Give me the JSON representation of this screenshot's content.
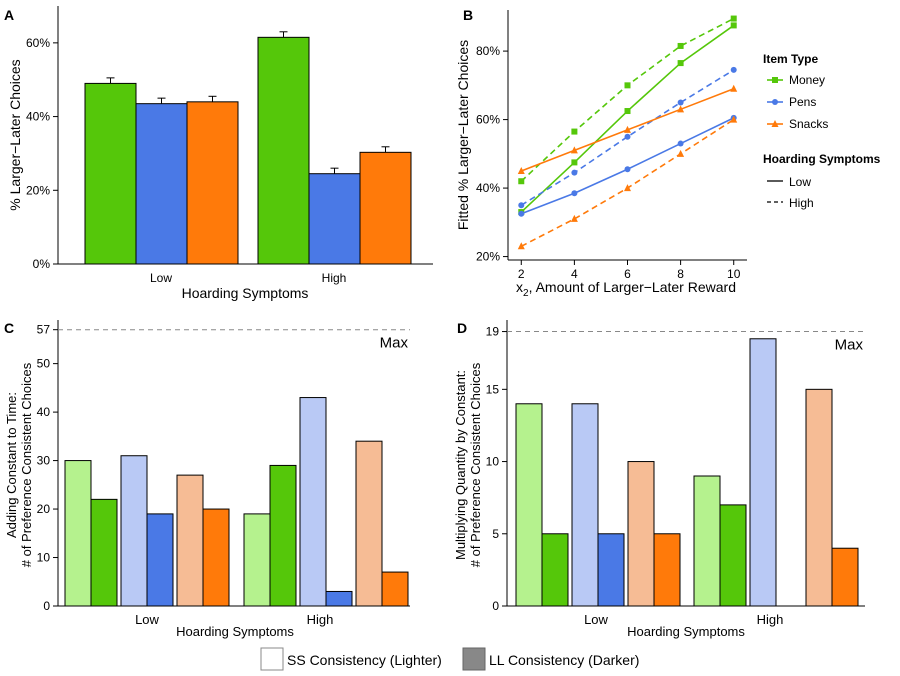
{
  "colors": {
    "money": "#55c70a",
    "money_light": "#b5f28e",
    "pens": "#4a79e6",
    "pens_light": "#b9c9f5",
    "snacks": "#ff7a0a",
    "snacks_light": "#f6bc95",
    "max_line": "#888888",
    "neutral_dark": "#888888"
  },
  "chart_data": [
    {
      "panel": "A",
      "type": "bar",
      "categories": [
        "Low",
        "High"
      ],
      "series": [
        {
          "name": "Money",
          "values": [
            49,
            61.5
          ],
          "errors": [
            1.5,
            1.5
          ]
        },
        {
          "name": "Pens",
          "values": [
            43.5,
            24.5
          ],
          "errors": [
            1.5,
            1.5
          ]
        },
        {
          "name": "Snacks",
          "values": [
            44,
            30.3
          ],
          "errors": [
            1.5,
            1.5
          ]
        }
      ],
      "xlabel": "Hoarding Symptoms",
      "ylabel": "% Larger−Later Choices",
      "ylim": [
        0,
        70
      ],
      "yticks": [
        0,
        20,
        40,
        60
      ],
      "ytick_labels": [
        "0%",
        "20%",
        "40%",
        "60%"
      ]
    },
    {
      "panel": "B",
      "type": "line",
      "x": [
        2,
        4,
        6,
        8,
        10
      ],
      "series": [
        {
          "name": "Money",
          "symptoms": "Low",
          "values": [
            33,
            47.5,
            62.5,
            76.5,
            87.5
          ]
        },
        {
          "name": "Money",
          "symptoms": "High",
          "values": [
            42,
            56.5,
            70,
            81.5,
            89.5
          ]
        },
        {
          "name": "Pens",
          "symptoms": "Low",
          "values": [
            32.5,
            38.5,
            45.5,
            53,
            60.5
          ]
        },
        {
          "name": "Pens",
          "symptoms": "High",
          "values": [
            35,
            44.5,
            55,
            65,
            74.5
          ]
        },
        {
          "name": "Snacks",
          "symptoms": "Low",
          "values": [
            45,
            51,
            57,
            63,
            69
          ]
        },
        {
          "name": "Snacks",
          "symptoms": "High",
          "values": [
            23,
            31,
            40,
            50,
            60
          ]
        }
      ],
      "xlabel_main": "x",
      "xlabel_sub": "2",
      "xlabel_rest": ", Amount of Larger−Later Reward",
      "ylabel": "Fitted % Larger−Later Choices",
      "xticks": [
        2,
        4,
        6,
        8,
        10
      ],
      "xlim": [
        1.5,
        10.5
      ],
      "ylim": [
        19,
        92
      ],
      "yticks": [
        20,
        40,
        60,
        80
      ],
      "ytick_labels": [
        "20%",
        "40%",
        "60%",
        "80%"
      ],
      "legend": {
        "item_title": "Item Type",
        "items": [
          "Money",
          "Pens",
          "Snacks"
        ],
        "line_title": "Hoarding Symptoms",
        "line_items": [
          "Low",
          "High"
        ]
      }
    },
    {
      "panel": "C",
      "type": "bar",
      "categories": [
        "Low",
        "High"
      ],
      "series": [
        {
          "name": "Money SS",
          "values": [
            30,
            19
          ]
        },
        {
          "name": "Money LL",
          "values": [
            22,
            29
          ]
        },
        {
          "name": "Pens SS",
          "values": [
            31,
            43
          ]
        },
        {
          "name": "Pens LL",
          "values": [
            19,
            3
          ]
        },
        {
          "name": "Snacks SS",
          "values": [
            27,
            34
          ]
        },
        {
          "name": "Snacks LL",
          "values": [
            20,
            7
          ]
        }
      ],
      "max_value": 57,
      "max_label": "Max",
      "xlabel": "Hoarding Symptoms",
      "ylabel_lines": [
        "Adding Constant to Time:",
        "# of Preference Consistent Choices"
      ],
      "ylim": [
        0,
        59
      ],
      "yticks": [
        0,
        10,
        20,
        30,
        40,
        50,
        57
      ]
    },
    {
      "panel": "D",
      "type": "bar",
      "categories": [
        "Low",
        "High"
      ],
      "series": [
        {
          "name": "Money SS",
          "values": [
            14,
            9
          ]
        },
        {
          "name": "Money LL",
          "values": [
            5,
            7
          ]
        },
        {
          "name": "Pens SS",
          "values": [
            14,
            18.5
          ]
        },
        {
          "name": "Pens LL",
          "values": [
            5,
            0
          ]
        },
        {
          "name": "Snacks SS",
          "values": [
            10,
            15
          ]
        },
        {
          "name": "Snacks LL",
          "values": [
            5,
            4
          ]
        }
      ],
      "max_value": 19,
      "max_label": "Max",
      "xlabel": "Hoarding Symptoms",
      "ylabel_lines": [
        "Multiplying Quantity by Constant:",
        "# of Preference Consistent Choices"
      ],
      "ylim": [
        0,
        19.8
      ],
      "yticks": [
        0,
        5,
        10,
        15,
        19
      ]
    }
  ],
  "bottom_legend": {
    "ss_label": "SS Consistency (Lighter)",
    "ll_label": "LL Consistency (Darker)"
  }
}
